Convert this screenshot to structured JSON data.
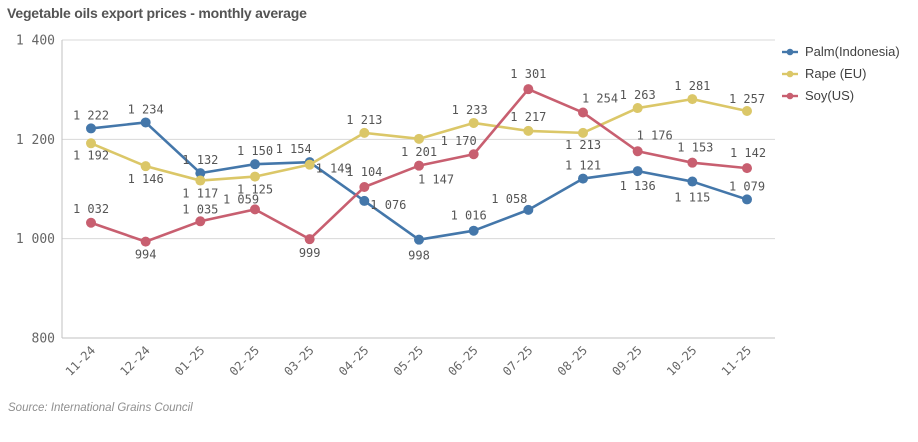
{
  "title": "Vegetable oils export prices - monthly average",
  "source_caption": "Source: International Grains Council",
  "colors": {
    "palm": "#4477aa",
    "rape": "#dbc768",
    "soy": "#c85f70",
    "grid": "#d8d8d8",
    "axis": "#c2c2c2",
    "axis_tick_text": "#666666",
    "data_label_text": "#555555"
  },
  "chart_data": {
    "type": "line",
    "title": "Vegetable oils export prices - monthly average",
    "x": [
      "11-24",
      "12-24",
      "01-25",
      "02-25",
      "03-25",
      "04-25",
      "05-25",
      "06-25",
      "07-25",
      "08-25",
      "09-25",
      "10-25",
      "11-25"
    ],
    "xlabel": "",
    "ylabel": "",
    "ylim": [
      800,
      1400
    ],
    "ytick_step": 200,
    "ytick_labels": [
      "800",
      "1 000",
      "1 200",
      "1 400"
    ],
    "grid": true,
    "point_labels_shown": true,
    "legend_position": "top-right",
    "series": [
      {
        "name": "Palm(Indonesia)",
        "color": "#4477aa",
        "values": [
          1222,
          1234,
          1132,
          1150,
          1154,
          1076,
          998,
          1016,
          1058,
          1121,
          1136,
          1115,
          1079
        ],
        "label_offsets": [
          [
            0,
            -9
          ],
          [
            0,
            -9
          ],
          [
            0,
            -9
          ],
          [
            0,
            -9
          ],
          [
            -16,
            -9
          ],
          [
            24,
            8
          ],
          [
            0,
            20
          ],
          [
            -5,
            -11
          ],
          [
            -19,
            -7
          ],
          [
            0,
            -9
          ],
          [
            0,
            19
          ],
          [
            0,
            20
          ],
          [
            0,
            -9
          ]
        ]
      },
      {
        "name": "Rape (EU)",
        "color": "#dbc768",
        "values": [
          1192,
          1146,
          1117,
          1125,
          1149,
          1213,
          1201,
          1233,
          1217,
          1213,
          1263,
          1281,
          1257
        ],
        "label_offsets": [
          [
            0,
            16
          ],
          [
            0,
            17
          ],
          [
            0,
            17
          ],
          [
            0,
            17
          ],
          [
            24,
            8
          ],
          [
            0,
            -9
          ],
          [
            0,
            17
          ],
          [
            -4,
            -9
          ],
          [
            0,
            -10
          ],
          [
            0,
            16
          ],
          [
            0,
            -9
          ],
          [
            0,
            -9
          ],
          [
            0,
            -8
          ]
        ]
      },
      {
        "name": "Soy(US)",
        "color": "#c85f70",
        "values": [
          1032,
          994,
          1035,
          1059,
          999,
          1104,
          1147,
          1170,
          1301,
          1254,
          1176,
          1153,
          1142
        ],
        "label_offsets": [
          [
            0,
            -10
          ],
          [
            0,
            17
          ],
          [
            0,
            -8
          ],
          [
            -14,
            -6
          ],
          [
            0,
            18
          ],
          [
            0,
            -11
          ],
          [
            17,
            18
          ],
          [
            -15,
            -9
          ],
          [
            0,
            -11
          ],
          [
            17,
            -10
          ],
          [
            17,
            -12
          ],
          [
            3,
            -11
          ],
          [
            1,
            -11
          ]
        ]
      }
    ]
  }
}
